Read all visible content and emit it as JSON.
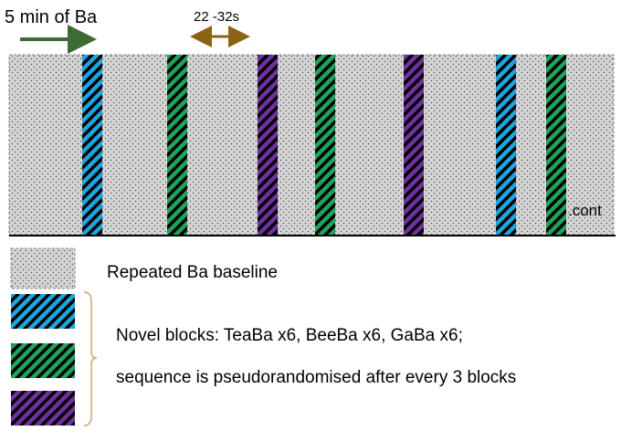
{
  "header": {
    "duration": "5 min of Ba",
    "interval": "22 -32s"
  },
  "timeline": {
    "continuation": ".cont"
  },
  "legend": {
    "baseline": "Repeated Ba baseline",
    "novel": "Novel blocks: TeaBa x6, BeeBa x6, GaBa x6;",
    "sequence": "sequence is pseudorandomised after every 3 blocks"
  }
}
